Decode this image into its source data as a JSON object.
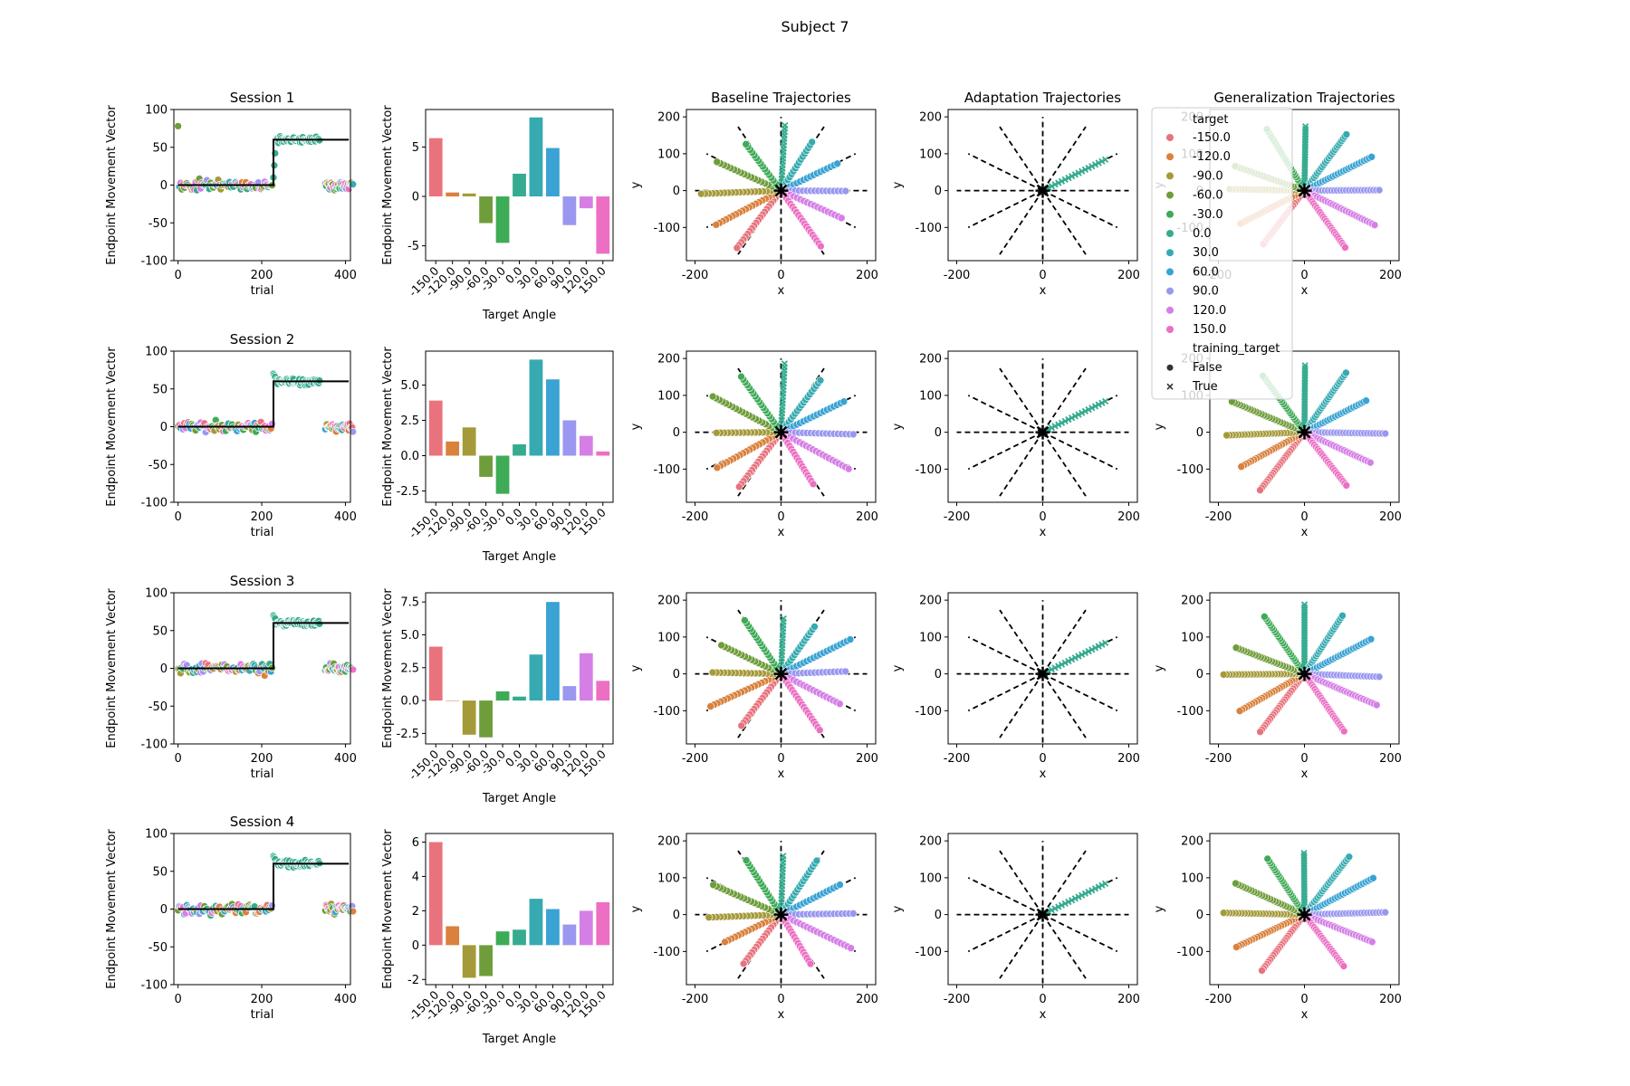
{
  "figure": {
    "suptitle": "Subject 7"
  },
  "palette": {
    "-150.0": "#e8737d",
    "-120.0": "#d9813d",
    "-90.0": "#a59a3a",
    "-60.0": "#6f9d3b",
    "-30.0": "#3eab56",
    "0.0": "#35ab8f",
    "30.0": "#36aab0",
    "60.0": "#3aa3d3",
    "90.0": "#9a97f0",
    "120.0": "#d57fe6",
    "150.0": "#ec6fc4"
  },
  "column_titles": [
    "Session 1",
    "",
    "Baseline Trajectories",
    "Adaptation Trajectories",
    "Generalization Trajectories"
  ],
  "row_titles": [
    "Session 1",
    "Session 2",
    "Session 3",
    "Session 4"
  ],
  "legend": {
    "hue_title": "target",
    "hue_entries": [
      "-150.0",
      "-120.0",
      "-90.0",
      "-60.0",
      "-30.0",
      "0.0",
      "30.0",
      "60.0",
      "90.0",
      "120.0",
      "150.0"
    ],
    "style_title": "training_target",
    "style_entries": [
      "False",
      "True"
    ]
  },
  "chart_data": [
    {
      "type": "scatter",
      "panel": "endpoint-over-trials",
      "xlabel": "trial",
      "ylabel": "Endpoint Movement Vector",
      "xlim": [
        -10,
        412
      ],
      "ylim": [
        -100,
        100
      ],
      "xticks": [
        0,
        200,
        400
      ],
      "yticks": [
        -100,
        -50,
        0,
        50,
        100
      ],
      "perturbation_line": [
        [
          0,
          0
        ],
        [
          228,
          0
        ],
        [
          228,
          60
        ],
        [
          408,
          60
        ]
      ],
      "phases": {
        "baseline": [
          0,
          228
        ],
        "adaptation": [
          228,
          340
        ],
        "generalization": [
          340,
          408
        ]
      },
      "adaptation_level": 60
    },
    {
      "type": "bar",
      "panel": "generalization-by-target",
      "xlabel": "Target Angle",
      "ylabel": "Endpoint Movement Vector",
      "categories": [
        "-150.0",
        "-120.0",
        "-90.0",
        "-60.0",
        "-30.0",
        "0.0",
        "30.0",
        "60.0",
        "90.0",
        "120.0",
        "150.0"
      ],
      "sessions": [
        {
          "values": [
            5.9,
            0.4,
            0.3,
            -2.7,
            -4.7,
            2.3,
            8.0,
            4.9,
            -2.9,
            -1.2,
            -5.8
          ],
          "ylim": [
            -6.5,
            8.8
          ],
          "yticks": [
            -5,
            0,
            5
          ]
        },
        {
          "values": [
            3.9,
            1.0,
            2.0,
            -1.5,
            -2.7,
            0.8,
            6.8,
            5.4,
            2.5,
            1.4,
            0.3
          ],
          "ylim": [
            -3.3,
            7.4
          ],
          "yticks": [
            -2.5,
            0.0,
            2.5,
            5.0
          ]
        },
        {
          "values": [
            4.1,
            0.0,
            -2.6,
            -2.8,
            0.7,
            0.3,
            3.5,
            7.5,
            1.1,
            3.6,
            1.5
          ],
          "ylim": [
            -3.3,
            8.2
          ],
          "yticks": [
            -2.5,
            0.0,
            2.5,
            5.0,
            7.5
          ]
        },
        {
          "values": [
            6.0,
            1.1,
            -1.9,
            -1.8,
            0.8,
            0.9,
            2.7,
            2.1,
            1.2,
            2.0,
            2.5
          ],
          "ylim": [
            -2.3,
            6.5
          ],
          "yticks": [
            -2,
            0,
            2,
            4,
            6
          ]
        }
      ]
    },
    {
      "type": "scatter",
      "panel": "trajectories",
      "xlabel": "x",
      "ylabel": "y",
      "xlim": [
        -220,
        220
      ],
      "ylim": [
        -190,
        220
      ],
      "xticks": [
        -200,
        0,
        200
      ],
      "yticks": [
        -100,
        0,
        100,
        200
      ],
      "target_angles_deg": [
        -150,
        -120,
        -90,
        -60,
        -30,
        0,
        30,
        60,
        90,
        120,
        150,
        180
      ],
      "target_distance": 200,
      "training_target": "0.0",
      "training_direction_deg": 30
    }
  ]
}
